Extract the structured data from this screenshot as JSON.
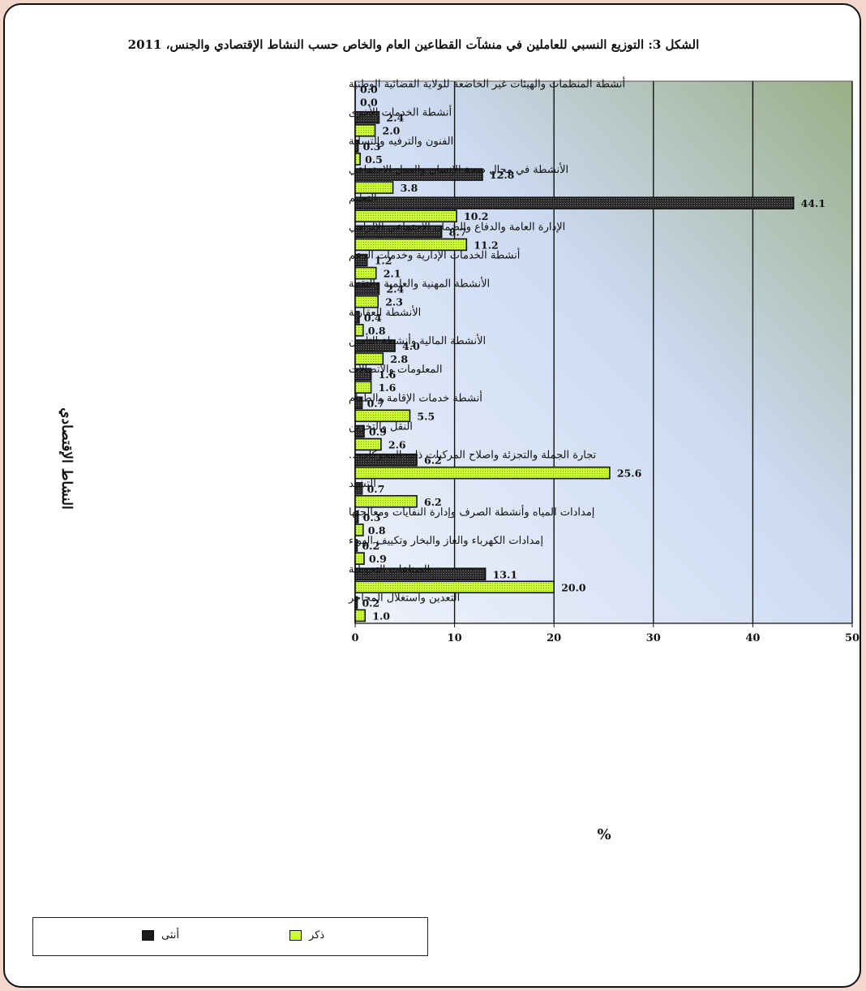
{
  "chart_data": {
    "type": "bar",
    "orientation": "horizontal",
    "title": "الشكل 3: التوزيع النسبي للعاملين في منشآت القطاعين العام والخاص حسب النشاط الإقتصادي والجنس، 2011",
    "xlabel": "%",
    "ylabel": "النشاط الإقتصادي",
    "xlim": [
      0,
      50
    ],
    "xticks": [
      "0",
      "10",
      "20",
      "30",
      "40",
      "50"
    ],
    "grid": true,
    "legend_position": "bottom-left",
    "categories": [
      "أنشطة المنظمات والهيئات غير الخاضعة للولاية القضائية الوطنية",
      "أنشطة الخدمات الأخرى",
      "الفنون والترفيه والتسلية",
      "الأنشطة في مجال صحة الإنسان والعمل الاجتماعي",
      "التعليم",
      "الإدارة العامة والدفاع والضمان الاجتماعي الإلزامي",
      "أنشطة الخدمات الإدارية وخدمات الدعم",
      "الأنشطة المهنية والعلمية والتقنية",
      "الأنشطة العقارية",
      "الأنشطة المالية وأنشطة التأمين",
      "المعلومات والاتصالات",
      "أنشطة خدمات الإقامة والطعام",
      "النقل والتخزين",
      "تجارة الجملة والتجزئة واصلاح المركبات ذات المحركات...",
      "التشيد",
      "إمدادات المياه وأنشطة الصرف وإدارة النفايات ومعالجتها",
      "إمدادات الكهرباء والغاز والبخار وتكييف الهواء",
      "الصناعات التحويلية",
      "التعدين واستغلال المحاجر"
    ],
    "series": [
      {
        "name": "أنثى",
        "color": "#1a1a1a",
        "values": [
          0.0,
          2.4,
          0.3,
          12.8,
          44.1,
          8.7,
          1.2,
          2.4,
          0.4,
          4.0,
          1.6,
          0.7,
          0.9,
          6.2,
          0.7,
          0.3,
          0.2,
          13.1,
          0.2
        ],
        "labels": [
          "0.0",
          "2.4",
          "0.3",
          "12.8",
          "44.1",
          "8.7",
          "1.2",
          "2.4",
          "0.4",
          "4.0",
          "1.6",
          "0.7",
          "0.9",
          "6.2",
          "0.7",
          "0.3",
          "0.2",
          "13.1",
          "0.2"
        ]
      },
      {
        "name": "ذكر",
        "color": "#ccff33",
        "values": [
          0.0,
          2.0,
          0.5,
          3.8,
          10.2,
          11.2,
          2.1,
          2.3,
          0.8,
          2.8,
          1.6,
          5.5,
          2.6,
          25.6,
          6.2,
          0.8,
          0.9,
          20.0,
          1.0
        ],
        "labels": [
          "0.0",
          "2.0",
          "0.5",
          "3.8",
          "10.2",
          "11.2",
          "2.1",
          "2.3",
          "0.8",
          "2.8",
          "1.6",
          "5.5",
          "2.6",
          "25.6",
          "6.2",
          "0.8",
          "0.9",
          "20.0",
          "1.0"
        ]
      }
    ]
  }
}
